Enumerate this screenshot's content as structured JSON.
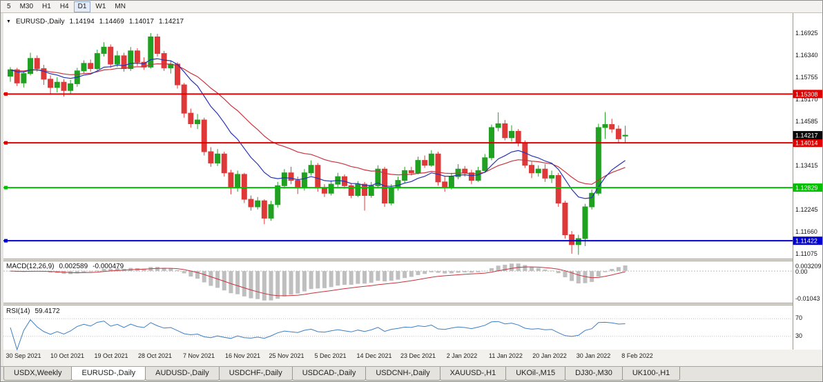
{
  "toolbar": {
    "timeframes": [
      "5",
      "M30",
      "H1",
      "H4",
      "D1",
      "W1",
      "MN"
    ],
    "active": "D1"
  },
  "chart_header": {
    "dropdown_icon": "▼",
    "symbol_period": "EURUSD-,Daily",
    "open": "1.14194",
    "high": "1.14469",
    "low": "1.14017",
    "close": "1.14217"
  },
  "price_axis": {
    "ticks": [
      "1.16925",
      "1.16340",
      "1.15755",
      "1.15170",
      "1.14585",
      "1.13415",
      "1.12245",
      "1.11660",
      "1.11075"
    ],
    "current_badge": {
      "label": "1.14217",
      "bg": "#0a0a0a"
    }
  },
  "macd_panel": {
    "title": "MACD(12,26,9)",
    "value_main": "0.002589",
    "value_signal": "-0.000479",
    "axis_top": "0.003209",
    "axis_zero": "0.00",
    "axis_bottom": "-0.01043",
    "histogram_color": "#bfbfbf",
    "signal_color": "#c8323c"
  },
  "rsi_panel": {
    "title": "RSI(14)",
    "value": "59.4172",
    "level_upper": "70",
    "level_lower": "30",
    "line_color": "#3b7dc4"
  },
  "tabs": {
    "items": [
      "USDX,Weekly",
      "EURUSD-,Daily",
      "AUDUSD-,Daily",
      "USDCHF-,Daily",
      "USDCAD-,Daily",
      "USDCNH-,Daily",
      "XAUUSD-,H1",
      "UKOil-,M15",
      "DJ30-,M30",
      "UK100-,H1"
    ],
    "active": "EURUSD-,Daily"
  },
  "chart_data": {
    "type": "candlestick",
    "symbol": "EURUSD-",
    "timeframe": "Daily",
    "price_range": [
      1.1095,
      1.1745
    ],
    "bull_color": "#21a121",
    "bear_color": "#df3838",
    "ema_fast_color": "#2531b4",
    "ema_slow_color": "#c8323c",
    "x_labels": [
      "30 Sep 2021",
      "10 Oct 2021",
      "19 Oct 2021",
      "28 Oct 2021",
      "7 Nov 2021",
      "16 Nov 2021",
      "25 Nov 2021",
      "5 Dec 2021",
      "14 Dec 2021",
      "23 Dec 2021",
      "2 Jan 2022",
      "11 Jan 2022",
      "20 Jan 2022",
      "30 Jan 2022",
      "8 Feb 2022"
    ],
    "hlines": [
      {
        "label": "1.15308",
        "price": 1.15308,
        "color": "#e00000",
        "width": 2
      },
      {
        "label": "1.14014",
        "price": 1.14014,
        "color": "#e00000",
        "width": 2
      },
      {
        "label": "1.12829",
        "price": 1.12829,
        "color": "#00c000",
        "width": 2
      },
      {
        "label": "1.11422",
        "price": 1.11422,
        "color": "#0000d0",
        "width": 2
      }
    ],
    "last_price": 1.14217,
    "indicators": {
      "macd": {
        "params": [
          12,
          26,
          9
        ],
        "last_main": 0.002589,
        "last_signal": -0.000479,
        "axis": [
          0.003209,
          0.0,
          -0.01043
        ]
      },
      "rsi": {
        "period": 14,
        "last": 59.4172,
        "levels": [
          70,
          30
        ]
      }
    },
    "candles": [
      [
        1.1578,
        1.1602,
        1.1563,
        1.1595
      ],
      [
        1.1595,
        1.16,
        1.1552,
        1.156
      ],
      [
        1.156,
        1.1592,
        1.1548,
        1.1585
      ],
      [
        1.1585,
        1.164,
        1.158,
        1.1625
      ],
      [
        1.1625,
        1.1633,
        1.159,
        1.1598
      ],
      [
        1.1598,
        1.1608,
        1.1555,
        1.157
      ],
      [
        1.157,
        1.158,
        1.1529,
        1.1548
      ],
      [
        1.1548,
        1.1575,
        1.1535,
        1.1562
      ],
      [
        1.1562,
        1.157,
        1.1524,
        1.154
      ],
      [
        1.154,
        1.1568,
        1.1532,
        1.1558
      ],
      [
        1.1558,
        1.16,
        1.155,
        1.1592
      ],
      [
        1.1592,
        1.162,
        1.1585,
        1.1612
      ],
      [
        1.1612,
        1.1622,
        1.159,
        1.1598
      ],
      [
        1.1598,
        1.1648,
        1.1594,
        1.1638
      ],
      [
        1.1638,
        1.1668,
        1.163,
        1.1655
      ],
      [
        1.1655,
        1.1662,
        1.16,
        1.161
      ],
      [
        1.161,
        1.1645,
        1.1602,
        1.1632
      ],
      [
        1.1632,
        1.164,
        1.159,
        1.1598
      ],
      [
        1.1598,
        1.1655,
        1.1592,
        1.1645
      ],
      [
        1.1645,
        1.1652,
        1.1605,
        1.1615
      ],
      [
        1.1615,
        1.1628,
        1.1595,
        1.1602
      ],
      [
        1.1602,
        1.1692,
        1.1598,
        1.1682
      ],
      [
        1.1682,
        1.169,
        1.163,
        1.1638
      ],
      [
        1.1638,
        1.1645,
        1.1592,
        1.16
      ],
      [
        1.16,
        1.162,
        1.1585,
        1.161
      ],
      [
        1.161,
        1.1615,
        1.1545,
        1.1555
      ],
      [
        1.1555,
        1.156,
        1.1468,
        1.148
      ],
      [
        1.148,
        1.1492,
        1.1442,
        1.1452
      ],
      [
        1.1452,
        1.1478,
        1.1438,
        1.1462
      ],
      [
        1.1462,
        1.1468,
        1.1368,
        1.1378
      ],
      [
        1.1378,
        1.139,
        1.1338,
        1.1348
      ],
      [
        1.1348,
        1.1385,
        1.134,
        1.1372
      ],
      [
        1.1372,
        1.1378,
        1.1312,
        1.1322
      ],
      [
        1.1322,
        1.133,
        1.1265,
        1.1282
      ],
      [
        1.1282,
        1.1328,
        1.1272,
        1.1318
      ],
      [
        1.1318,
        1.1322,
        1.1242,
        1.1252
      ],
      [
        1.1252,
        1.1262,
        1.1222,
        1.1232
      ],
      [
        1.1232,
        1.1258,
        1.1225,
        1.1248
      ],
      [
        1.1248,
        1.1252,
        1.1186,
        1.1202
      ],
      [
        1.1202,
        1.1248,
        1.1195,
        1.1238
      ],
      [
        1.1238,
        1.1298,
        1.123,
        1.1288
      ],
      [
        1.1288,
        1.1332,
        1.128,
        1.1322
      ],
      [
        1.1322,
        1.1338,
        1.1292,
        1.1302
      ],
      [
        1.1302,
        1.1312,
        1.1266,
        1.1282
      ],
      [
        1.1282,
        1.1332,
        1.1275,
        1.1322
      ],
      [
        1.1322,
        1.1355,
        1.1315,
        1.1342
      ],
      [
        1.1342,
        1.1348,
        1.1272,
        1.1282
      ],
      [
        1.1282,
        1.1292,
        1.1258,
        1.1268
      ],
      [
        1.1268,
        1.1302,
        1.1262,
        1.1292
      ],
      [
        1.1292,
        1.1322,
        1.1285,
        1.1312
      ],
      [
        1.1312,
        1.1318,
        1.128,
        1.1288
      ],
      [
        1.1288,
        1.1295,
        1.1255,
        1.1262
      ],
      [
        1.1262,
        1.13,
        1.1258,
        1.1292
      ],
      [
        1.1292,
        1.1298,
        1.1222,
        1.1262
      ],
      [
        1.1262,
        1.1298,
        1.1256,
        1.1288
      ],
      [
        1.1288,
        1.1342,
        1.1282,
        1.1332
      ],
      [
        1.1332,
        1.1338,
        1.1232,
        1.1242
      ],
      [
        1.1242,
        1.1292,
        1.1236,
        1.1282
      ],
      [
        1.1282,
        1.1312,
        1.1275,
        1.1302
      ],
      [
        1.1302,
        1.1338,
        1.1295,
        1.1328
      ],
      [
        1.1328,
        1.1338,
        1.1315,
        1.1322
      ],
      [
        1.1322,
        1.1365,
        1.1318,
        1.1355
      ],
      [
        1.1355,
        1.1368,
        1.1335,
        1.1342
      ],
      [
        1.1342,
        1.1382,
        1.1338,
        1.1372
      ],
      [
        1.1372,
        1.1378,
        1.1288,
        1.1298
      ],
      [
        1.1298,
        1.1312,
        1.1272,
        1.1285
      ],
      [
        1.1285,
        1.1322,
        1.1278,
        1.1312
      ],
      [
        1.1312,
        1.1345,
        1.1305,
        1.1332
      ],
      [
        1.1332,
        1.134,
        1.1312,
        1.1322
      ],
      [
        1.1322,
        1.133,
        1.1292,
        1.1302
      ],
      [
        1.1302,
        1.1338,
        1.1298,
        1.1328
      ],
      [
        1.1328,
        1.1372,
        1.1322,
        1.1362
      ],
      [
        1.1362,
        1.145,
        1.1355,
        1.1442
      ],
      [
        1.1442,
        1.1482,
        1.1432,
        1.1452
      ],
      [
        1.1452,
        1.1462,
        1.1408,
        1.1415
      ],
      [
        1.1415,
        1.1448,
        1.1405,
        1.1432
      ],
      [
        1.1432,
        1.1438,
        1.1392,
        1.1402
      ],
      [
        1.1402,
        1.1408,
        1.1335,
        1.1342
      ],
      [
        1.1342,
        1.1352,
        1.1308,
        1.1322
      ],
      [
        1.1322,
        1.1342,
        1.1312,
        1.1332
      ],
      [
        1.1332,
        1.1345,
        1.1298,
        1.1308
      ],
      [
        1.1308,
        1.1328,
        1.1295,
        1.1315
      ],
      [
        1.1315,
        1.1322,
        1.1232,
        1.1242
      ],
      [
        1.1242,
        1.1248,
        1.1148,
        1.1158
      ],
      [
        1.1158,
        1.1168,
        1.1108,
        1.1132
      ],
      [
        1.1132,
        1.1158,
        1.1105,
        1.1148
      ],
      [
        1.1148,
        1.124,
        1.1128,
        1.1232
      ],
      [
        1.1232,
        1.1278,
        1.1225,
        1.1268
      ],
      [
        1.1268,
        1.1452,
        1.1262,
        1.1442
      ],
      [
        1.1442,
        1.1483,
        1.1412,
        1.145
      ],
      [
        1.145,
        1.1465,
        1.1428,
        1.1438
      ],
      [
        1.1438,
        1.1448,
        1.1402,
        1.1412
      ],
      [
        1.14194,
        1.14469,
        1.14017,
        1.14217
      ]
    ]
  }
}
